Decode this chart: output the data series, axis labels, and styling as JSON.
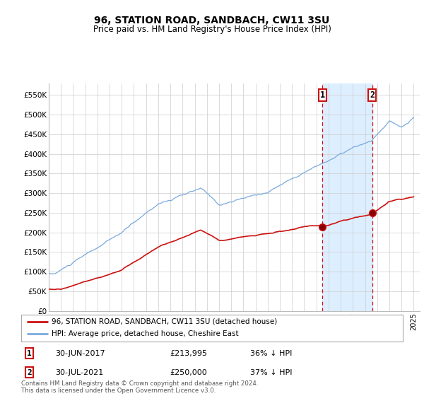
{
  "title": "96, STATION ROAD, SANDBACH, CW11 3SU",
  "subtitle": "Price paid vs. HM Land Registry's House Price Index (HPI)",
  "legend_label_red": "96, STATION ROAD, SANDBACH, CW11 3SU (detached house)",
  "legend_label_blue": "HPI: Average price, detached house, Cheshire East",
  "sale1_date": "30-JUN-2017",
  "sale1_price": "£213,995",
  "sale1_pct": "36% ↓ HPI",
  "sale1_year": 2017.5,
  "sale1_value": 213995,
  "sale2_date": "30-JUL-2021",
  "sale2_price": "£250,000",
  "sale2_pct": "37% ↓ HPI",
  "sale2_year": 2021.58,
  "sale2_value": 250000,
  "footer": "Contains HM Land Registry data © Crown copyright and database right 2024.\nThis data is licensed under the Open Government Licence v3.0.",
  "hpi_color": "#7aaadd",
  "price_color": "#cc1111",
  "highlight_color": "#ddeeff",
  "marker_box_color": "#cc1111",
  "ylim": [
    0,
    580000
  ],
  "yticks": [
    0,
    50000,
    100000,
    150000,
    200000,
    250000,
    300000,
    350000,
    400000,
    450000,
    500000,
    550000
  ],
  "ytick_labels": [
    "£0",
    "£50K",
    "£100K",
    "£150K",
    "£200K",
    "£250K",
    "£300K",
    "£350K",
    "£400K",
    "£450K",
    "£500K",
    "£550K"
  ],
  "xmin": 1995.0,
  "xmax": 2025.5
}
